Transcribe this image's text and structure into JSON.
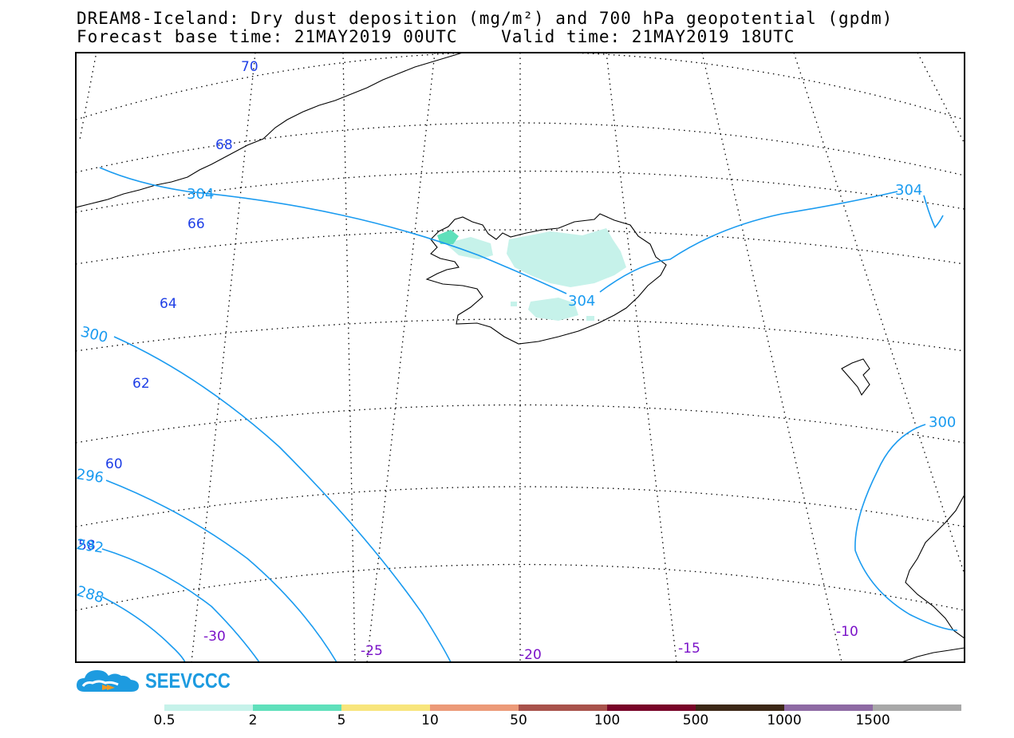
{
  "title": {
    "line1": "DREAM8-Iceland: Dry dust deposition (mg/m²) and 700 hPa geopotential (gpdm)",
    "line2": "Forecast base time: 21MAY2019 00UTC    Valid time: 21MAY2019 18UTC"
  },
  "map": {
    "latitude_labels": [
      "70",
      "68",
      "66",
      "64",
      "62",
      "60",
      "58"
    ],
    "longitude_labels": [
      "-30",
      "-25",
      "-20",
      "-15",
      "-10"
    ],
    "contour_labels": [
      "304",
      "304",
      "304",
      "300",
      "300",
      "296",
      "292",
      "288"
    ],
    "colors": {
      "contour": "#1a9bf0",
      "lat_label": "#1f3fe6",
      "lon_label": "#7a12c8",
      "deposition_low": "#c6f2ea",
      "deposition_mid": "#5fe0bb"
    }
  },
  "logo": {
    "text": "SEEVCCC",
    "icon": "cloud-logo-icon"
  },
  "colorbar": {
    "colors": [
      "#c6f2ea",
      "#5fe0bb",
      "#f8e57c",
      "#ec9a78",
      "#a8524b",
      "#780428",
      "#3c2817",
      "#8e6aa4",
      "#a8a8a8"
    ],
    "labels": [
      "0.5",
      "2",
      "5",
      "10",
      "50",
      "100",
      "500",
      "1000",
      "1500"
    ]
  }
}
